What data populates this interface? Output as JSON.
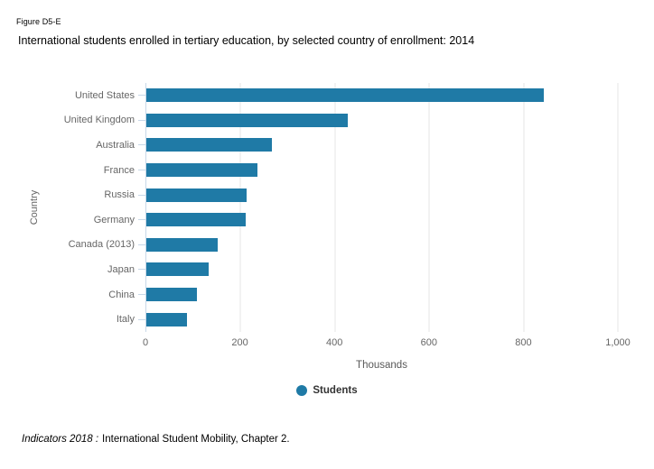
{
  "header": {
    "figure_label": "Figure D5-E",
    "title": "International students enrolled in tertiary education, by selected country of enrollment: 2014"
  },
  "chart_data": {
    "type": "bar",
    "orientation": "horizontal",
    "title": "International students enrolled in tertiary education, by selected country of enrollment: 2014",
    "categories": [
      "United States",
      "United Kingdom",
      "Australia",
      "France",
      "Russia",
      "Germany",
      "Canada (2013)",
      "Japan",
      "China",
      "Italy"
    ],
    "series": [
      {
        "name": "Students",
        "values": [
          842,
          428,
          266,
          235,
          213,
          210,
          151,
          133,
          108,
          87
        ]
      }
    ],
    "xlabel": "Thousands",
    "ylabel": "Country",
    "xlim": [
      0,
      1000
    ],
    "xticks": [
      {
        "value": 0,
        "label": "0"
      },
      {
        "value": 200,
        "label": "200"
      },
      {
        "value": 400,
        "label": "400"
      },
      {
        "value": 600,
        "label": "600"
      },
      {
        "value": 800,
        "label": "800"
      },
      {
        "value": 1000,
        "label": "1,000"
      }
    ],
    "grid": "vertical",
    "legend_position": "bottom"
  },
  "colors": {
    "bar": "#1f7aa6",
    "axis": "#c9d8e8",
    "gridline": "#e6e6e6",
    "tick_text": "#666666"
  },
  "footer": {
    "source_italic": "Indicators 2018 :",
    "source_rest": "International Student Mobility, Chapter 2."
  }
}
